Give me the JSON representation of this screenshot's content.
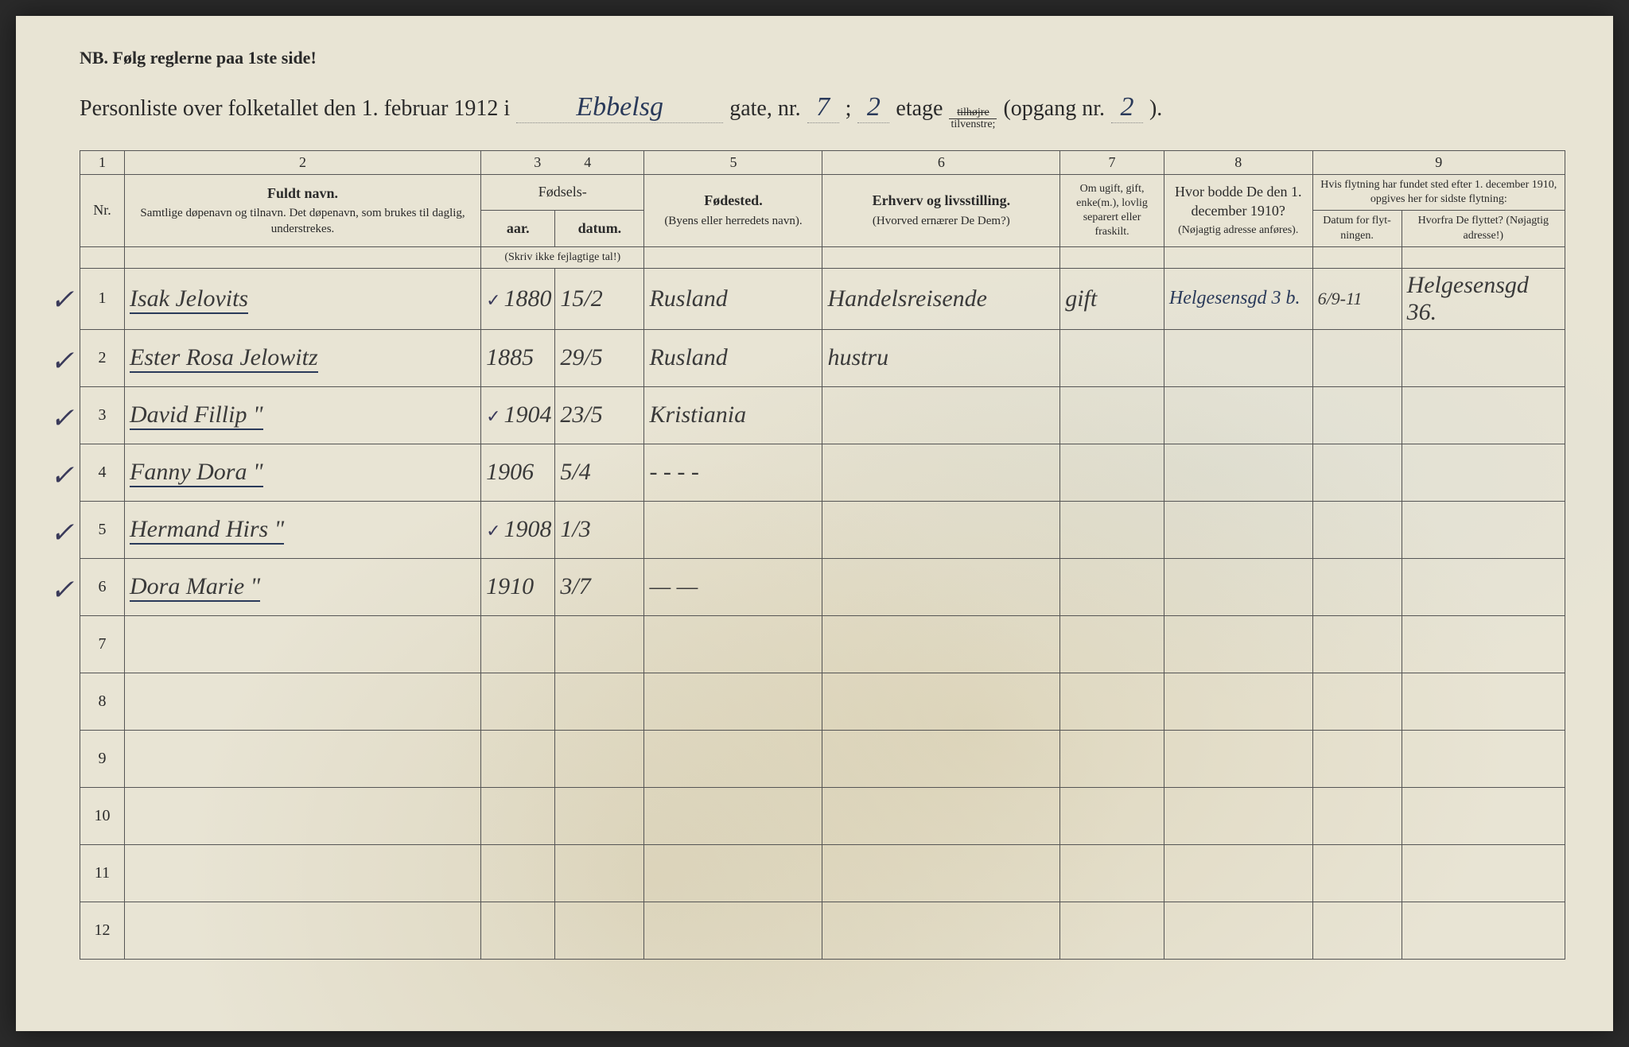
{
  "nb": "NB.  Følg reglerne paa 1ste side!",
  "title": {
    "prefix": "Personliste over folketallet den 1. februar 1912 i",
    "street": "Ebbelsg",
    "gate_label": "gate, nr.",
    "gate_nr": "7",
    "semicolon": ";",
    "etage_nr": "2",
    "etage_label": "etage",
    "side_top": "tilhøjre",
    "side_bot": "tilvenstre;",
    "opgang_label": "(opgang nr.",
    "opgang_nr": "2",
    "close": ")."
  },
  "colnums": [
    "1",
    "2",
    "3",
    "4",
    "5",
    "6",
    "7",
    "8",
    "9"
  ],
  "headers": {
    "nr": "Nr.",
    "name_title": "Fuldt navn.",
    "name_sub": "Samtlige døpenavn og tilnavn. Det døpenavn, som brukes til daglig, understrekes.",
    "birth_group": "Fødsels-",
    "year": "aar.",
    "date": "datum.",
    "year_sub": "(Skriv ikke fejlagtige tal!)",
    "place": "Fødested.",
    "place_sub": "(Byens eller herredets navn).",
    "occ": "Erhverv og livsstilling.",
    "occ_sub": "(Hvorved ernærer De Dem?)",
    "status": "Om ugift, gift, enke(m.), lovlig separert eller fraskilt.",
    "addr": "Hvor bodde De den 1. december 1910?",
    "addr_sub": "(Nøjagtig adresse anføres).",
    "move_group": "Hvis flytning har fundet sted efter 1. december 1910, opgives her for sidste flytning:",
    "move_date": "Datum for flyt-ningen.",
    "move_from": "Hvorfra De flyttet? (Nøjagtig adresse!)"
  },
  "rows": [
    {
      "nr": "1",
      "check": "✓",
      "name": "Isak Jelovits",
      "ycheck": "✓",
      "year": "1880",
      "date": "15/2",
      "place": "Rusland",
      "occ": "Handelsreisende",
      "status": "gift",
      "addr": "Helgesensgd 3 b.",
      "mdate": "6/9-11",
      "from": "Helgesensgd 36."
    },
    {
      "nr": "2",
      "check": "✓",
      "name": "Ester Rosa Jelowitz",
      "ycheck": "",
      "year": "1885",
      "date": "29/5",
      "place": "Rusland",
      "occ": "hustru",
      "status": "",
      "addr": "",
      "mdate": "",
      "from": ""
    },
    {
      "nr": "3",
      "check": "✓",
      "name": "David Fillip    \"",
      "ycheck": "✓",
      "year": "1904",
      "date": "23/5",
      "place": "Kristiania",
      "occ": "",
      "status": "",
      "addr": "",
      "mdate": "",
      "from": ""
    },
    {
      "nr": "4",
      "check": "✓",
      "name": "Fanny Dora    \"",
      "ycheck": "",
      "year": "1906",
      "date": "5/4",
      "place": "- - - -",
      "occ": "",
      "status": "",
      "addr": "",
      "mdate": "",
      "from": ""
    },
    {
      "nr": "5",
      "check": "✓",
      "name": "Hermand Hirs    \"",
      "ycheck": "✓",
      "year": "1908",
      "date": "1/3",
      "place": "",
      "occ": "",
      "status": "",
      "addr": "",
      "mdate": "",
      "from": ""
    },
    {
      "nr": "6",
      "check": "✓",
      "name": "Dora Marie    \"",
      "ycheck": "",
      "year": "1910",
      "date": "3/7",
      "place": "—  —",
      "occ": "",
      "status": "",
      "addr": "",
      "mdate": "",
      "from": ""
    },
    {
      "nr": "7",
      "check": "",
      "name": "",
      "ycheck": "",
      "year": "",
      "date": "",
      "place": "",
      "occ": "",
      "status": "",
      "addr": "",
      "mdate": "",
      "from": ""
    },
    {
      "nr": "8",
      "check": "",
      "name": "",
      "ycheck": "",
      "year": "",
      "date": "",
      "place": "",
      "occ": "",
      "status": "",
      "addr": "",
      "mdate": "",
      "from": ""
    },
    {
      "nr": "9",
      "check": "",
      "name": "",
      "ycheck": "",
      "year": "",
      "date": "",
      "place": "",
      "occ": "",
      "status": "",
      "addr": "",
      "mdate": "",
      "from": ""
    },
    {
      "nr": "10",
      "check": "",
      "name": "",
      "ycheck": "",
      "year": "",
      "date": "",
      "place": "",
      "occ": "",
      "status": "",
      "addr": "",
      "mdate": "",
      "from": ""
    },
    {
      "nr": "11",
      "check": "",
      "name": "",
      "ycheck": "",
      "year": "",
      "date": "",
      "place": "",
      "occ": "",
      "status": "",
      "addr": "",
      "mdate": "",
      "from": ""
    },
    {
      "nr": "12",
      "check": "",
      "name": "",
      "ycheck": "",
      "year": "",
      "date": "",
      "place": "",
      "occ": "",
      "status": "",
      "addr": "",
      "mdate": "",
      "from": ""
    }
  ],
  "colors": {
    "paper": "#e8e4d4",
    "ink_print": "#2a2a2a",
    "ink_hand": "#3a3a3a",
    "ink_blue": "#2a3a5a",
    "border": "#555555"
  }
}
